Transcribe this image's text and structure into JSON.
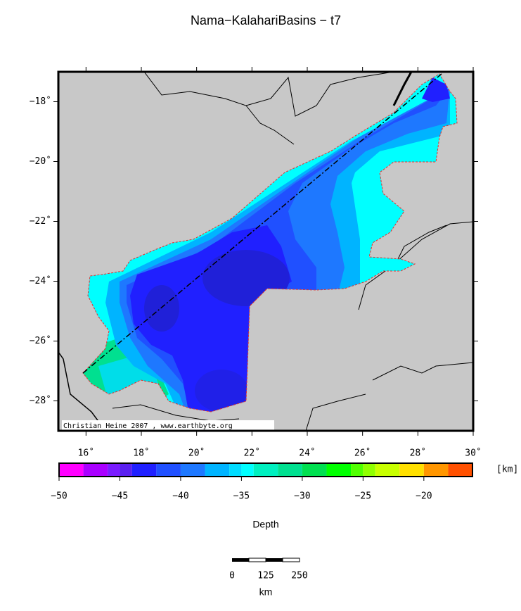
{
  "title": "Nama−KalahariBasins − t7",
  "map": {
    "lon_range": [
      15,
      30
    ],
    "lat_range": [
      -17,
      -29
    ],
    "lat_ticks": [
      {
        "value": -18,
        "label": "−18˚"
      },
      {
        "value": -20,
        "label": "−20˚"
      },
      {
        "value": -22,
        "label": "−22˚"
      },
      {
        "value": -24,
        "label": "−24˚"
      },
      {
        "value": -26,
        "label": "−26˚"
      },
      {
        "value": -28,
        "label": "−28˚"
      }
    ],
    "lon_ticks": [
      {
        "value": 16,
        "label": "16˚"
      },
      {
        "value": 18,
        "label": "18˚"
      },
      {
        "value": 20,
        "label": "20˚"
      },
      {
        "value": 22,
        "label": "22˚"
      },
      {
        "value": 24,
        "label": "24˚"
      },
      {
        "value": 26,
        "label": "26˚"
      },
      {
        "value": 28,
        "label": "28˚"
      },
      {
        "value": 30,
        "label": "30˚"
      }
    ],
    "credit": "Christian Heine 2007 , www.earthbyte.org"
  },
  "colorbar": {
    "bounds": [
      -50,
      -48,
      -46,
      -45,
      -44,
      -42,
      -40,
      -38,
      -36,
      -35,
      -34,
      -32,
      -30,
      -28,
      -26,
      -25,
      -24,
      -22,
      -20,
      -18,
      -16
    ],
    "colors": [
      "#ff00ff",
      "#aa00ff",
      "#7a1cff",
      "#5a20f0",
      "#2020ff",
      "#2050ff",
      "#1e78ff",
      "#00b4ff",
      "#00dcff",
      "#00ffff",
      "#00f0c0",
      "#00e090",
      "#00e050",
      "#00ff00",
      "#50ff00",
      "#90ff00",
      "#c8ff00",
      "#ffe000",
      "#ff9600",
      "#ff5000"
    ],
    "ticks": [
      {
        "value": -50,
        "label": "−50"
      },
      {
        "value": -45,
        "label": "−45"
      },
      {
        "value": -40,
        "label": "−40"
      },
      {
        "value": -35,
        "label": "−35"
      },
      {
        "value": -30,
        "label": "−30"
      },
      {
        "value": -25,
        "label": "−25"
      },
      {
        "value": -20,
        "label": "−20"
      }
    ],
    "unit": "[km]",
    "label": "Depth"
  },
  "scale_bar": {
    "labels": [
      "0",
      "125",
      "250"
    ],
    "unit": "km"
  }
}
